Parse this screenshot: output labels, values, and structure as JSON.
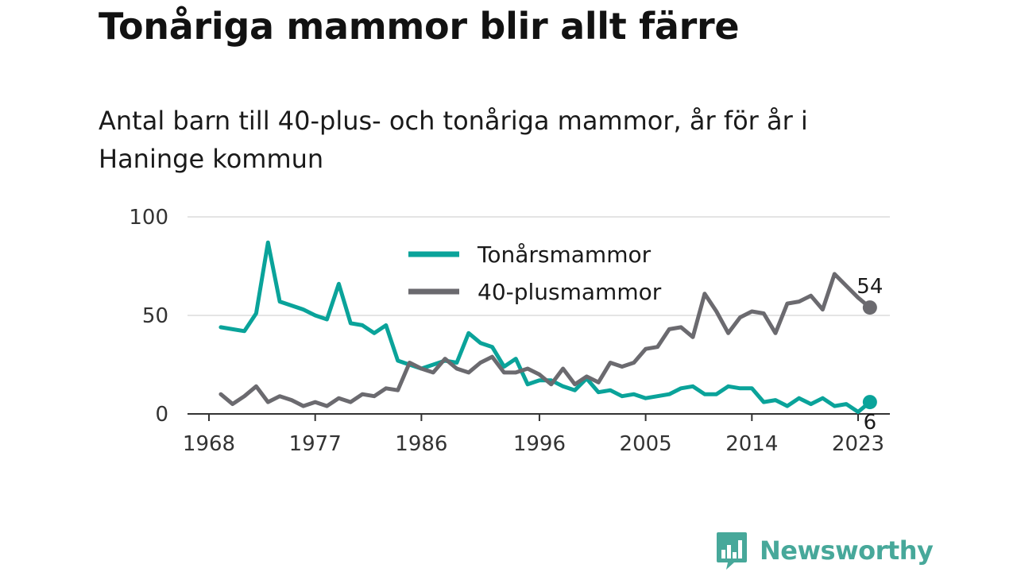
{
  "title": "Tonåriga mammor blir allt färre",
  "subtitle": "Antal barn till 40-plus- och tonåriga mammor, år för år i Haninge kommun",
  "brand": {
    "name": "Newsworthy",
    "icon": "newsworthy-logo-icon"
  },
  "chart_data": {
    "type": "line",
    "xlim": [
      1968,
      2023
    ],
    "ylim": [
      0,
      100
    ],
    "x_ticks": [
      1968,
      1977,
      1986,
      1996,
      2005,
      2014,
      2023
    ],
    "y_ticks": [
      0,
      50,
      100
    ],
    "grid": true,
    "legend_placement": "top-center",
    "x": [
      1969,
      1970,
      1971,
      1972,
      1973,
      1974,
      1975,
      1976,
      1977,
      1978,
      1979,
      1980,
      1981,
      1982,
      1983,
      1984,
      1985,
      1986,
      1987,
      1988,
      1989,
      1990,
      1991,
      1992,
      1993,
      1994,
      1995,
      1996,
      1997,
      1998,
      1999,
      2000,
      2001,
      2002,
      2003,
      2004,
      2005,
      2006,
      2007,
      2008,
      2009,
      2010,
      2011,
      2012,
      2013,
      2014,
      2015,
      2016,
      2017,
      2018,
      2019,
      2020,
      2021,
      2022,
      2023,
      2024
    ],
    "series": [
      {
        "name": "Tonårsmammor",
        "color": "#0aa39a",
        "values": [
          44,
          43,
          42,
          51,
          87,
          57,
          55,
          53,
          50,
          48,
          66,
          46,
          45,
          41,
          45,
          27,
          25,
          23,
          25,
          27,
          26,
          41,
          36,
          34,
          24,
          28,
          15,
          17,
          17,
          14,
          12,
          18,
          11,
          12,
          9,
          10,
          8,
          9,
          10,
          13,
          14,
          10,
          10,
          14,
          13,
          13,
          6,
          7,
          4,
          8,
          5,
          8,
          4,
          5,
          1,
          6
        ],
        "end_label": "6"
      },
      {
        "name": "40-plusmammor",
        "color": "#6b6a6f",
        "values": [
          10,
          5,
          9,
          14,
          6,
          9,
          7,
          4,
          6,
          4,
          8,
          6,
          10,
          9,
          13,
          12,
          26,
          23,
          21,
          28,
          23,
          21,
          26,
          29,
          21,
          21,
          23,
          20,
          15,
          23,
          15,
          19,
          16,
          26,
          24,
          26,
          33,
          34,
          43,
          44,
          39,
          61,
          52,
          41,
          49,
          52,
          51,
          41,
          56,
          57,
          60,
          53,
          71,
          65,
          59,
          54
        ],
        "end_label": "54"
      }
    ]
  }
}
